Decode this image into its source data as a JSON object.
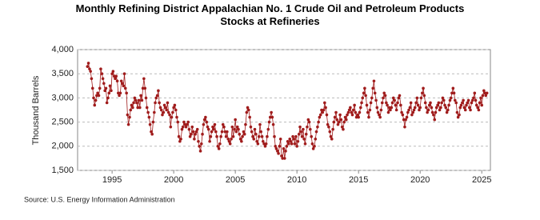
{
  "chart_data": {
    "type": "line",
    "title": "Monthly Refining District Appalachian No. 1 Crude Oil and Petroleum Products Stocks at Refineries",
    "ylabel": "Thousand Barrels",
    "source": "Source: U.S. Energy Information Administration",
    "color": "#a01c1c",
    "xlim": [
      1992.2,
      2025.7
    ],
    "xticks": [
      1995,
      2000,
      2005,
      2010,
      2015,
      2020,
      2025
    ],
    "ylim": [
      1500,
      4000
    ],
    "yticks": [
      {
        "value": 1500,
        "label": "1,500"
      },
      {
        "value": 2000,
        "label": "2,000"
      },
      {
        "value": 2500,
        "label": "2,500"
      },
      {
        "value": 3000,
        "label": "3,000"
      },
      {
        "value": 3500,
        "label": "3,500"
      },
      {
        "value": 4000,
        "label": "4,000"
      }
    ],
    "grid": true,
    "x": [
      1993,
      1993.08,
      1993.17,
      1993.25,
      1993.33,
      1993.42,
      1993.5,
      1993.58,
      1993.67,
      1993.75,
      1993.83,
      1993.92,
      1994,
      1994.08,
      1994.17,
      1994.25,
      1994.33,
      1994.42,
      1994.5,
      1994.58,
      1994.67,
      1994.75,
      1994.83,
      1994.92,
      1995,
      1995.08,
      1995.17,
      1995.25,
      1995.33,
      1995.42,
      1995.5,
      1995.58,
      1995.67,
      1995.75,
      1995.83,
      1995.92,
      1996,
      1996.08,
      1996.17,
      1996.25,
      1996.33,
      1996.42,
      1996.5,
      1996.58,
      1996.67,
      1996.75,
      1996.83,
      1996.92,
      1997,
      1997.08,
      1997.17,
      1997.25,
      1997.33,
      1997.42,
      1997.5,
      1997.58,
      1997.67,
      1997.75,
      1997.83,
      1997.92,
      1998,
      1998.08,
      1998.17,
      1998.25,
      1998.33,
      1998.42,
      1998.5,
      1998.58,
      1998.67,
      1998.75,
      1998.83,
      1998.92,
      1999,
      1999.08,
      1999.17,
      1999.25,
      1999.33,
      1999.42,
      1999.5,
      1999.58,
      1999.67,
      1999.75,
      1999.83,
      1999.92,
      2000,
      2000.08,
      2000.17,
      2000.25,
      2000.33,
      2000.42,
      2000.5,
      2000.58,
      2000.67,
      2000.75,
      2000.83,
      2000.92,
      2001,
      2001.08,
      2001.17,
      2001.25,
      2001.33,
      2001.42,
      2001.5,
      2001.58,
      2001.67,
      2001.75,
      2001.83,
      2001.92,
      2002,
      2002.08,
      2002.17,
      2002.25,
      2002.33,
      2002.42,
      2002.5,
      2002.58,
      2002.67,
      2002.75,
      2002.83,
      2002.92,
      2003,
      2003.08,
      2003.17,
      2003.25,
      2003.33,
      2003.42,
      2003.5,
      2003.58,
      2003.67,
      2003.75,
      2003.83,
      2003.92,
      2004,
      2004.08,
      2004.17,
      2004.25,
      2004.33,
      2004.42,
      2004.5,
      2004.58,
      2004.67,
      2004.75,
      2004.83,
      2004.92,
      2005,
      2005.08,
      2005.17,
      2005.25,
      2005.33,
      2005.42,
      2005.5,
      2005.58,
      2005.67,
      2005.75,
      2005.83,
      2005.92,
      2006,
      2006.08,
      2006.17,
      2006.25,
      2006.33,
      2006.42,
      2006.5,
      2006.58,
      2006.67,
      2006.75,
      2006.83,
      2006.92,
      2007,
      2007.08,
      2007.17,
      2007.25,
      2007.33,
      2007.42,
      2007.5,
      2007.58,
      2007.67,
      2007.75,
      2007.83,
      2007.92,
      2008,
      2008.08,
      2008.17,
      2008.25,
      2008.33,
      2008.42,
      2008.5,
      2008.58,
      2008.67,
      2008.75,
      2008.83,
      2008.92,
      2009,
      2009.08,
      2009.17,
      2009.25,
      2009.33,
      2009.42,
      2009.5,
      2009.58,
      2009.67,
      2009.75,
      2009.83,
      2009.92,
      2010,
      2010.08,
      2010.17,
      2010.25,
      2010.33,
      2010.42,
      2010.5,
      2010.58,
      2010.67,
      2010.75,
      2010.83,
      2010.92,
      2011,
      2011.08,
      2011.17,
      2011.25,
      2011.33,
      2011.42,
      2011.5,
      2011.58,
      2011.67,
      2011.75,
      2011.83,
      2011.92,
      2012,
      2012.08,
      2012.17,
      2012.25,
      2012.33,
      2012.42,
      2012.5,
      2012.58,
      2012.67,
      2012.75,
      2012.83,
      2012.92,
      2013,
      2013.08,
      2013.17,
      2013.25,
      2013.33,
      2013.42,
      2013.5,
      2013.58,
      2013.67,
      2013.75,
      2013.83,
      2013.92,
      2014,
      2014.08,
      2014.17,
      2014.25,
      2014.33,
      2014.42,
      2014.5,
      2014.58,
      2014.67,
      2014.75,
      2014.83,
      2014.92,
      2015,
      2015.08,
      2015.17,
      2015.25,
      2015.33,
      2015.42,
      2015.5,
      2015.58,
      2015.67,
      2015.75,
      2015.83,
      2015.92,
      2016,
      2016.08,
      2016.17,
      2016.25,
      2016.33,
      2016.42,
      2016.5,
      2016.58,
      2016.67,
      2016.75,
      2016.83,
      2016.92,
      2017,
      2017.08,
      2017.17,
      2017.25,
      2017.33,
      2017.42,
      2017.5,
      2017.58,
      2017.67,
      2017.75,
      2017.83,
      2017.92,
      2018,
      2018.08,
      2018.17,
      2018.25,
      2018.33,
      2018.42,
      2018.5,
      2018.58,
      2018.67,
      2018.75,
      2018.83,
      2018.92,
      2019,
      2019.08,
      2019.17,
      2019.25,
      2019.33,
      2019.42,
      2019.5,
      2019.58,
      2019.67,
      2019.75,
      2019.83,
      2019.92,
      2020,
      2020.08,
      2020.17,
      2020.25,
      2020.33,
      2020.42,
      2020.5,
      2020.58,
      2020.67,
      2020.75,
      2020.83,
      2020.92,
      2021,
      2021.08,
      2021.17,
      2021.25,
      2021.33,
      2021.42,
      2021.5,
      2021.58,
      2021.67,
      2021.75,
      2021.83,
      2021.92,
      2022,
      2022.08,
      2022.17,
      2022.25,
      2022.33,
      2022.42,
      2022.5,
      2022.58,
      2022.67,
      2022.75,
      2022.83,
      2022.92,
      2023,
      2023.08,
      2023.17,
      2023.25,
      2023.33,
      2023.42,
      2023.5,
      2023.58,
      2023.67,
      2023.75,
      2023.83,
      2023.92,
      2024,
      2024.08,
      2024.17,
      2024.25,
      2024.33,
      2024.42,
      2024.5,
      2024.58,
      2024.67,
      2024.75,
      2024.83,
      2024.92,
      2025,
      2025.08,
      2025.17,
      2025.25,
      2025.33,
      2025.42
    ],
    "values": [
      3650,
      3720,
      3600,
      3550,
      3400,
      3200,
      3000,
      2850,
      2950,
      3050,
      3100,
      3050,
      3200,
      3600,
      3500,
      3400,
      3300,
      3150,
      3200,
      2900,
      3000,
      3100,
      3250,
      3150,
      3500,
      3550,
      3450,
      3400,
      3450,
      3350,
      3100,
      3050,
      3100,
      3350,
      3300,
      3250,
      3500,
      3200,
      3100,
      2650,
      2450,
      2600,
      2750,
      2850,
      2800,
      2900,
      3000,
      2950,
      2900,
      2800,
      2950,
      2800,
      3050,
      2950,
      3200,
      3400,
      3200,
      3000,
      2800,
      2700,
      2600,
      2450,
      2300,
      2250,
      2500,
      2700,
      2900,
      3000,
      3050,
      3150,
      2900,
      2800,
      2750,
      2650,
      2700,
      2850,
      2800,
      2750,
      2900,
      2700,
      2650,
      2400,
      2600,
      2700,
      2800,
      2850,
      2750,
      2600,
      2500,
      2200,
      2100,
      2150,
      2350,
      2400,
      2500,
      2450,
      2400,
      2450,
      2500,
      2350,
      2200,
      2250,
      2400,
      2300,
      2150,
      2250,
      2300,
      2350,
      2100,
      2000,
      1900,
      2050,
      2250,
      2450,
      2550,
      2600,
      2500,
      2400,
      2350,
      2100,
      2200,
      2300,
      2400,
      2350,
      2450,
      2300,
      2200,
      2000,
      1950,
      2050,
      2200,
      2300,
      2450,
      2400,
      2300,
      2200,
      2300,
      2150,
      2100,
      2050,
      2150,
      2400,
      2200,
      2350,
      2550,
      2300,
      2400,
      2350,
      2250,
      2150,
      2100,
      2200,
      2300,
      2250,
      2450,
      2700,
      2800,
      2750,
      2600,
      2400,
      2300,
      2200,
      2150,
      2350,
      2250,
      2100,
      2050,
      2200,
      2450,
      2300,
      2200,
      2100,
      2050,
      2000,
      2050,
      2200,
      2350,
      2500,
      2600,
      2700,
      2600,
      2450,
      2200,
      2000,
      1950,
      1900,
      1850,
      2000,
      2150,
      1800,
      1750,
      1950,
      1750,
      1900,
      2000,
      2100,
      2050,
      2150,
      2100,
      2050,
      2200,
      2150,
      2050,
      2200,
      2000,
      2100,
      2250,
      2400,
      2300,
      2200,
      2350,
      2150,
      2050,
      2250,
      2400,
      2550,
      2500,
      2350,
      2200,
      2050,
      1950,
      2000,
      2150,
      2300,
      2400,
      2500,
      2600,
      2650,
      2750,
      2700,
      2750,
      2900,
      2800,
      2650,
      2450,
      2400,
      2300,
      2200,
      2150,
      2350,
      2500,
      2600,
      2700,
      2550,
      2450,
      2500,
      2650,
      2550,
      2400,
      2350,
      2500,
      2600,
      2550,
      2650,
      2700,
      2750,
      2800,
      2700,
      2650,
      2750,
      2850,
      2700,
      2600,
      2650,
      2600,
      2700,
      2800,
      2900,
      3000,
      3100,
      3200,
      3050,
      2850,
      2700,
      2600,
      2750,
      2900,
      3000,
      3200,
      3350,
      3100,
      2950,
      2800,
      2700,
      2650,
      2600,
      2750,
      2900,
      3000,
      3100,
      3050,
      2900,
      2850,
      2700,
      2800,
      2750,
      2800,
      2900,
      3000,
      2950,
      2850,
      2750,
      2900,
      3000,
      3050,
      2850,
      2700,
      2650,
      2550,
      2400,
      2550,
      2600,
      2700,
      2750,
      2800,
      2900,
      2650,
      2700,
      2750,
      2800,
      2900,
      3000,
      2850,
      2750,
      2800,
      3000,
      3100,
      3200,
      3050,
      2900,
      2800,
      2700,
      2750,
      2850,
      2900,
      2800,
      2700,
      2650,
      2550,
      2700,
      2800,
      2850,
      2900,
      2750,
      2800,
      2900,
      3000,
      2950,
      2850,
      2800,
      2700,
      2750,
      2850,
      2950,
      3000,
      3100,
      3200,
      3100,
      2950,
      2900,
      2700,
      2600,
      2650,
      2800,
      2850,
      2900,
      2950,
      2800,
      2750,
      2850,
      2900,
      2950,
      2800,
      2750,
      2900,
      2950,
      3000,
      3100,
      2950,
      2850,
      2800,
      2750,
      2900,
      3000,
      2850,
      3050,
      3150,
      3100,
      3050,
      3100
    ]
  }
}
